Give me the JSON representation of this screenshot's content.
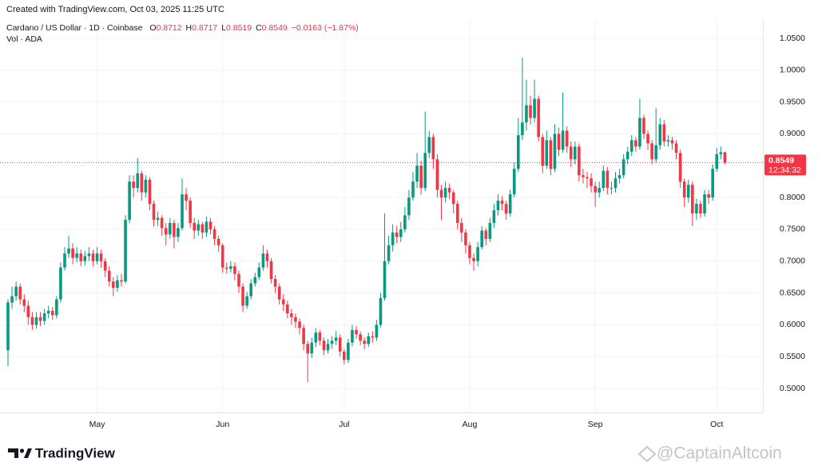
{
  "header": {
    "created": "Created with TradingView.com, Oct 03, 2025 11:25 UTC",
    "symbol": "Cardano / US Dollar · 1D · Coinbase",
    "ohlc": [
      {
        "key": "O",
        "value": "0.8712"
      },
      {
        "key": "H",
        "value": "0.8717"
      },
      {
        "key": "L",
        "value": "0.8519"
      },
      {
        "key": "C",
        "value": "0.8549"
      }
    ],
    "change": "−0.0163 (−1.87%)",
    "volume": "Vol · ADA"
  },
  "chart_data": {
    "type": "candlestick",
    "categories": [
      null,
      null,
      null,
      null,
      null,
      null,
      null,
      null,
      null,
      null,
      null,
      null,
      null,
      null,
      null,
      null,
      null,
      null,
      null,
      null,
      null,
      null,
      "May",
      null,
      null,
      null,
      null,
      null,
      null,
      null,
      null,
      null,
      null,
      null,
      null,
      null,
      null,
      null,
      null,
      null,
      null,
      null,
      null,
      null,
      null,
      null,
      null,
      null,
      null,
      null,
      null,
      null,
      null,
      "Jun",
      null,
      null,
      null,
      null,
      null,
      null,
      null,
      null,
      null,
      null,
      null,
      null,
      null,
      null,
      null,
      null,
      null,
      null,
      null,
      null,
      null,
      null,
      null,
      null,
      null,
      null,
      null,
      null,
      null,
      "Jul",
      null,
      null,
      null,
      null,
      null,
      null,
      null,
      null,
      null,
      null,
      null,
      null,
      null,
      null,
      null,
      null,
      null,
      null,
      null,
      null,
      null,
      null,
      null,
      null,
      null,
      null,
      null,
      null,
      null,
      null,
      "Aug",
      null,
      null,
      null,
      null,
      null,
      null,
      null,
      null,
      null,
      null,
      null,
      null,
      null,
      null,
      null,
      null,
      null,
      null,
      null,
      null,
      null,
      null,
      null,
      null,
      null,
      null,
      null,
      null,
      null,
      null,
      "Sep",
      null,
      null,
      null,
      null,
      null,
      null,
      null,
      null,
      null,
      null,
      null,
      null,
      null,
      null,
      null,
      null,
      null,
      null,
      null,
      null,
      null,
      null,
      null,
      null,
      null,
      null,
      null,
      null,
      null,
      "Oct",
      null,
      null
    ],
    "open": [
      0.56,
      0.635,
      0.645,
      0.66,
      0.64,
      0.63,
      0.612,
      0.6,
      0.612,
      0.606,
      0.618,
      0.622,
      0.615,
      0.64,
      0.69,
      0.712,
      0.72,
      0.705,
      0.712,
      0.7,
      0.708,
      0.712,
      0.7,
      0.712,
      0.7,
      0.685,
      0.668,
      0.658,
      0.67,
      0.668,
      0.765,
      0.825,
      0.815,
      0.838,
      0.808,
      0.828,
      0.79,
      0.765,
      0.768,
      0.752,
      0.742,
      0.76,
      0.738,
      0.752,
      0.805,
      0.795,
      0.76,
      0.748,
      0.758,
      0.745,
      0.762,
      0.75,
      0.735,
      0.725,
      0.69,
      0.688,
      0.692,
      0.68,
      0.66,
      0.63,
      0.645,
      0.665,
      0.675,
      0.69,
      0.712,
      0.7,
      0.672,
      0.66,
      0.64,
      0.632,
      0.618,
      0.612,
      0.605,
      0.595,
      0.57,
      0.555,
      0.572,
      0.588,
      0.575,
      0.56,
      0.57,
      0.575,
      0.58,
      0.558,
      0.545,
      0.572,
      0.592,
      0.585,
      0.575,
      0.57,
      0.582,
      0.58,
      0.6,
      0.642,
      0.7,
      0.725,
      0.745,
      0.738,
      0.75,
      0.772,
      0.8,
      0.825,
      0.85,
      0.815,
      0.87,
      0.895,
      0.86,
      0.812,
      0.8,
      0.815,
      0.808,
      0.79,
      0.76,
      0.745,
      0.725,
      0.705,
      0.7,
      0.722,
      0.748,
      0.735,
      0.76,
      0.78,
      0.795,
      0.79,
      0.775,
      0.805,
      0.845,
      0.898,
      0.918,
      0.945,
      0.925,
      0.955,
      0.895,
      0.85,
      0.89,
      0.845,
      0.9,
      0.875,
      0.905,
      0.88,
      0.86,
      0.88,
      0.835,
      0.832,
      0.83,
      0.818,
      0.808,
      0.815,
      0.842,
      0.815,
      0.815,
      0.83,
      0.835,
      0.86,
      0.872,
      0.89,
      0.88,
      0.925,
      0.9,
      0.885,
      0.86,
      0.882,
      0.915,
      0.888,
      0.89,
      0.885,
      0.87,
      0.825,
      0.8,
      0.82,
      0.775,
      0.79,
      0.775,
      0.805,
      0.8,
      0.845,
      0.868,
      0.8712
    ],
    "high": [
      0.64,
      0.66,
      0.668,
      0.665,
      0.648,
      0.638,
      0.62,
      0.62,
      0.62,
      0.625,
      0.63,
      0.628,
      0.645,
      0.698,
      0.722,
      0.74,
      0.728,
      0.722,
      0.718,
      0.716,
      0.722,
      0.718,
      0.722,
      0.718,
      0.705,
      0.692,
      0.675,
      0.678,
      0.68,
      0.772,
      0.835,
      0.835,
      0.862,
      0.842,
      0.835,
      0.832,
      0.795,
      0.778,
      0.772,
      0.76,
      0.768,
      0.765,
      0.76,
      0.83,
      0.815,
      0.8,
      0.768,
      0.765,
      0.762,
      0.77,
      0.768,
      0.755,
      0.74,
      0.728,
      0.698,
      0.7,
      0.698,
      0.685,
      0.665,
      0.652,
      0.672,
      0.682,
      0.698,
      0.725,
      0.718,
      0.705,
      0.678,
      0.665,
      0.648,
      0.638,
      0.625,
      0.618,
      0.61,
      0.6,
      0.575,
      0.58,
      0.595,
      0.592,
      0.58,
      0.578,
      0.582,
      0.59,
      0.585,
      0.562,
      0.578,
      0.6,
      0.598,
      0.59,
      0.58,
      0.588,
      0.59,
      0.608,
      0.65,
      0.775,
      0.74,
      0.758,
      0.755,
      0.762,
      0.785,
      0.812,
      0.84,
      0.87,
      0.858,
      0.935,
      0.905,
      0.9,
      0.868,
      0.82,
      0.825,
      0.822,
      0.812,
      0.795,
      0.768,
      0.75,
      0.73,
      0.712,
      0.73,
      0.755,
      0.752,
      0.768,
      0.79,
      0.805,
      0.802,
      0.795,
      0.812,
      0.855,
      0.925,
      1.02,
      0.985,
      0.96,
      0.985,
      0.96,
      0.9,
      0.905,
      0.895,
      0.915,
      0.91,
      0.965,
      0.912,
      0.888,
      0.888,
      0.885,
      0.845,
      0.84,
      0.838,
      0.825,
      0.825,
      0.85,
      0.848,
      0.825,
      0.84,
      0.845,
      0.868,
      0.88,
      0.898,
      0.895,
      0.955,
      0.93,
      0.905,
      0.89,
      0.94,
      0.925,
      0.922,
      0.898,
      0.895,
      0.89,
      0.875,
      0.83,
      0.828,
      0.825,
      0.798,
      0.795,
      0.812,
      0.812,
      0.852,
      0.878,
      0.88,
      0.8717
    ],
    "low": [
      0.535,
      0.625,
      0.638,
      0.632,
      0.62,
      0.6,
      0.592,
      0.594,
      0.598,
      0.6,
      0.61,
      0.608,
      0.61,
      0.635,
      0.685,
      0.705,
      0.695,
      0.698,
      0.692,
      0.693,
      0.7,
      0.692,
      0.695,
      0.69,
      0.675,
      0.66,
      0.645,
      0.652,
      0.66,
      0.665,
      0.76,
      0.8,
      0.808,
      0.795,
      0.8,
      0.78,
      0.755,
      0.755,
      0.74,
      0.725,
      0.735,
      0.72,
      0.73,
      0.748,
      0.78,
      0.752,
      0.735,
      0.74,
      0.735,
      0.738,
      0.742,
      0.725,
      0.715,
      0.682,
      0.68,
      0.682,
      0.67,
      0.65,
      0.62,
      0.625,
      0.64,
      0.66,
      0.67,
      0.685,
      0.69,
      0.665,
      0.65,
      0.632,
      0.622,
      0.61,
      0.6,
      0.595,
      0.585,
      0.56,
      0.51,
      0.548,
      0.565,
      0.568,
      0.552,
      0.555,
      0.562,
      0.568,
      0.55,
      0.538,
      0.54,
      0.566,
      0.578,
      0.568,
      0.562,
      0.565,
      0.572,
      0.575,
      0.596,
      0.638,
      0.695,
      0.715,
      0.728,
      0.73,
      0.745,
      0.765,
      0.795,
      0.815,
      0.805,
      0.81,
      0.862,
      0.845,
      0.8,
      0.765,
      0.792,
      0.798,
      0.775,
      0.75,
      0.73,
      0.712,
      0.695,
      0.685,
      0.692,
      0.718,
      0.725,
      0.73,
      0.752,
      0.772,
      0.78,
      0.765,
      0.77,
      0.8,
      0.84,
      0.89,
      0.905,
      0.915,
      0.918,
      0.888,
      0.838,
      0.845,
      0.835,
      0.84,
      0.865,
      0.87,
      0.87,
      0.848,
      0.852,
      0.825,
      0.822,
      0.815,
      0.808,
      0.785,
      0.8,
      0.81,
      0.805,
      0.805,
      0.808,
      0.822,
      0.83,
      0.852,
      0.865,
      0.872,
      0.875,
      0.892,
      0.875,
      0.852,
      0.855,
      0.875,
      0.88,
      0.88,
      0.875,
      0.86,
      0.815,
      0.785,
      0.792,
      0.755,
      0.765,
      0.768,
      0.77,
      0.79,
      0.795,
      0.84,
      0.86,
      0.8519
    ],
    "close": [
      0.635,
      0.645,
      0.66,
      0.64,
      0.63,
      0.612,
      0.6,
      0.612,
      0.606,
      0.618,
      0.622,
      0.615,
      0.64,
      0.69,
      0.712,
      0.72,
      0.705,
      0.712,
      0.7,
      0.708,
      0.712,
      0.7,
      0.712,
      0.7,
      0.685,
      0.668,
      0.658,
      0.67,
      0.668,
      0.765,
      0.825,
      0.815,
      0.838,
      0.808,
      0.828,
      0.79,
      0.765,
      0.768,
      0.752,
      0.742,
      0.76,
      0.738,
      0.752,
      0.805,
      0.795,
      0.76,
      0.748,
      0.758,
      0.745,
      0.762,
      0.75,
      0.735,
      0.725,
      0.69,
      0.688,
      0.692,
      0.68,
      0.66,
      0.63,
      0.645,
      0.665,
      0.675,
      0.69,
      0.712,
      0.7,
      0.672,
      0.66,
      0.64,
      0.632,
      0.618,
      0.612,
      0.605,
      0.595,
      0.57,
      0.555,
      0.572,
      0.588,
      0.575,
      0.56,
      0.57,
      0.575,
      0.58,
      0.558,
      0.545,
      0.572,
      0.592,
      0.585,
      0.575,
      0.57,
      0.582,
      0.58,
      0.6,
      0.642,
      0.7,
      0.725,
      0.745,
      0.738,
      0.75,
      0.772,
      0.8,
      0.825,
      0.85,
      0.815,
      0.87,
      0.895,
      0.86,
      0.812,
      0.8,
      0.815,
      0.808,
      0.79,
      0.76,
      0.745,
      0.725,
      0.705,
      0.7,
      0.722,
      0.748,
      0.735,
      0.76,
      0.78,
      0.795,
      0.79,
      0.775,
      0.805,
      0.845,
      0.898,
      0.918,
      0.945,
      0.925,
      0.955,
      0.895,
      0.85,
      0.89,
      0.845,
      0.9,
      0.875,
      0.905,
      0.88,
      0.86,
      0.88,
      0.835,
      0.832,
      0.83,
      0.818,
      0.808,
      0.815,
      0.842,
      0.815,
      0.815,
      0.83,
      0.835,
      0.86,
      0.872,
      0.89,
      0.88,
      0.925,
      0.9,
      0.885,
      0.86,
      0.882,
      0.915,
      0.888,
      0.89,
      0.885,
      0.87,
      0.825,
      0.8,
      0.82,
      0.775,
      0.79,
      0.775,
      0.805,
      0.8,
      0.845,
      0.868,
      0.8712,
      0.8549
    ],
    "up_color": "#089981",
    "down_color": "#f23645",
    "ylim": [
      0.4636,
      1.0751
    ],
    "yticks": [
      {
        "value": 0.5,
        "label": "0.5000"
      },
      {
        "value": 0.55,
        "label": "0.5500"
      },
      {
        "value": 0.6,
        "label": "0.6000"
      },
      {
        "value": 0.65,
        "label": "0.6500"
      },
      {
        "value": 0.7,
        "label": "0.7000"
      },
      {
        "value": 0.75,
        "label": "0.7500"
      },
      {
        "value": 0.8,
        "label": "0.8000"
      },
      {
        "value": 0.85,
        "label": "0.8500"
      },
      {
        "value": 0.9,
        "label": "0.9000"
      },
      {
        "value": 0.95,
        "label": "0.9500"
      },
      {
        "value": 1.0,
        "label": "1.0000"
      },
      {
        "value": 1.05,
        "label": "1.0500"
      }
    ],
    "grid": true,
    "last_price": 0.8549,
    "countdown": "12:34:32"
  },
  "footer": {
    "brand": "TradingView",
    "watermark": "@CaptainAltcoin"
  }
}
